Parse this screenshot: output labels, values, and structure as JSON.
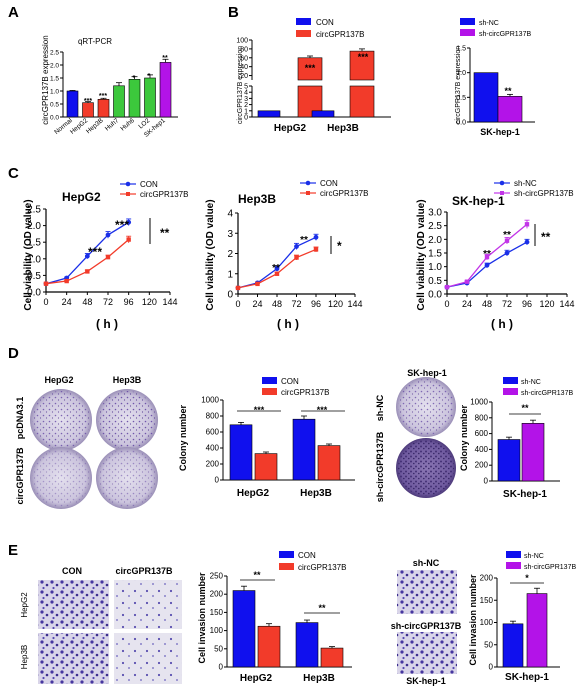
{
  "figure": {
    "panel_labels": [
      "A",
      "B",
      "C",
      "D",
      "E"
    ],
    "colors": {
      "CON": "#1010ee",
      "circGPR137B": "#f23b2a",
      "shNC": "#1010ee",
      "shcirc": "#b313e8",
      "normal": "#1010ee",
      "hcc_low": "#f23b2a",
      "hcc_mid": "#3cc83c",
      "skhep": "#b313e8",
      "line_con": "#1a2fe8",
      "line_circ": "#f23b2a",
      "line_sh": "#1a2fe8",
      "line_shcirc": "#c234e8"
    }
  },
  "panel_a": {
    "title": "qRT-PCR",
    "ylabel": "circGPR137B expression",
    "sig": [
      "***",
      "***",
      "*",
      "*",
      "**"
    ]
  },
  "panel_b": {
    "legend": [
      "CON",
      "circGPR137B"
    ],
    "ylabel": "circGPR137B expression",
    "sig": [
      "***",
      "***"
    ],
    "right_legend": [
      "sh-NC",
      "sh-circGPR137B"
    ],
    "right_ylabel": "circGPR137B expression",
    "right_sig": "**",
    "right_xlabel": "SK-hep-1"
  },
  "panel_c": {
    "xlabel": "( h )",
    "ylabel": "Cell viability (OD value)",
    "titles": [
      "HepG2",
      "Hep3B",
      "SK-hep-1"
    ],
    "legend1": [
      "CON",
      "circGPR137B"
    ],
    "legend2": [
      "CON",
      "circGPR137B"
    ],
    "legend3": [
      "sh-NC",
      "sh-circGPR137B"
    ],
    "sig_points": [
      "***",
      "***",
      "**",
      "**",
      "**",
      "**"
    ],
    "sig_side": [
      "**",
      "*",
      "**"
    ]
  },
  "panel_d": {
    "col_heads_left": [
      "HepG2",
      "Hep3B"
    ],
    "row_heads_left": [
      "pcDNA3.1",
      "circGPR137B"
    ],
    "legend": [
      "CON",
      "circGPR137B"
    ],
    "ylabel": "Colony number",
    "sig": [
      "***",
      "***"
    ],
    "right_title": "SK-hep-1",
    "row_heads_right": [
      "sh-NC",
      "sh-circGPR137B"
    ],
    "right_legend": [
      "sh-NC",
      "sh-circGPR137B"
    ],
    "right_ylabel": "Colony number",
    "right_sig": "**",
    "right_xlabel": "SK-hep-1"
  },
  "panel_e": {
    "col_heads": [
      "CON",
      "circGPR137B"
    ],
    "row_heads": [
      "HepG2",
      "Hep3B"
    ],
    "legend": [
      "CON",
      "circGPR137B"
    ],
    "ylabel": "Cell invasion number",
    "sig": [
      "**",
      "**"
    ],
    "right_top": "sh-NC",
    "right_mid": "sh-circGPR137B",
    "right_bottom": "SK-hep-1",
    "right_legend": [
      "sh-NC",
      "sh-circGPR137B"
    ],
    "right_ylabel": "Cell invasion number",
    "right_sig": "*",
    "right_xlabel": "SK-hep-1"
  },
  "chart_data": [
    {
      "panel": "A",
      "type": "bar",
      "title": "qRT-PCR",
      "ylabel": "circGPR137B expression",
      "categories": [
        "Normal",
        "HepG2",
        "Hep3B",
        "Huh7",
        "Huh6",
        "LO2",
        "SK-hep1"
      ],
      "values": [
        1.0,
        0.55,
        0.68,
        1.2,
        1.45,
        1.5,
        2.1
      ],
      "errors": [
        0.02,
        0.04,
        0.04,
        0.12,
        0.1,
        0.12,
        0.12
      ],
      "ylim": [
        0,
        2.5
      ],
      "yticks": [
        0.0,
        0.5,
        1.0,
        1.5,
        2.0,
        2.5
      ]
    },
    {
      "panel": "B-left",
      "type": "bar",
      "ylabel": "circGPR137B expression",
      "categories": [
        "HepG2",
        "Hep3B"
      ],
      "series": [
        {
          "name": "CON",
          "values": [
            1,
            1
          ]
        },
        {
          "name": "circGPR137B",
          "values": [
            60,
            75
          ],
          "errors": [
            4,
            5
          ]
        }
      ],
      "yticks_lower": [
        0,
        1,
        2,
        3,
        4,
        5
      ],
      "yticks_upper": [
        20,
        40,
        60,
        80,
        100
      ]
    },
    {
      "panel": "B-right",
      "type": "bar",
      "ylabel": "circGPR137B expression",
      "categories": [
        "SK-hep-1"
      ],
      "series": [
        {
          "name": "sh-NC",
          "values": [
            1.0
          ]
        },
        {
          "name": "sh-circGPR137B",
          "values": [
            0.52
          ],
          "errors": [
            0.04
          ]
        }
      ],
      "ylim": [
        0,
        1.5
      ],
      "yticks": [
        0.0,
        0.5,
        1.0,
        1.5
      ]
    },
    {
      "panel": "C-HepG2",
      "type": "line",
      "title": "HepG2",
      "xlabel": "( h )",
      "ylabel": "Cell viability (OD value)",
      "x": [
        0,
        24,
        48,
        72,
        96
      ],
      "series": [
        {
          "name": "CON",
          "values": [
            0.25,
            0.42,
            1.08,
            1.72,
            2.1
          ],
          "errors": [
            0.02,
            0.03,
            0.08,
            0.1,
            0.1
          ]
        },
        {
          "name": "circGPR137B",
          "values": [
            0.25,
            0.33,
            0.62,
            1.05,
            1.58
          ],
          "errors": [
            0.02,
            0.02,
            0.04,
            0.06,
            0.1
          ]
        }
      ],
      "xticks": [
        0,
        24,
        48,
        72,
        96,
        120,
        144
      ],
      "yticks": [
        0.0,
        0.5,
        1.0,
        1.5,
        2.0,
        2.5
      ],
      "ylim": [
        0,
        2.5
      ]
    },
    {
      "panel": "C-Hep3B",
      "type": "line",
      "title": "Hep3B",
      "xlabel": "( h )",
      "ylabel": "Cell viability (OD value)",
      "x": [
        0,
        24,
        48,
        72,
        96
      ],
      "series": [
        {
          "name": "CON",
          "values": [
            0.3,
            0.55,
            1.25,
            2.35,
            2.8
          ],
          "errors": [
            0.02,
            0.03,
            0.12,
            0.15,
            0.15
          ]
        },
        {
          "name": "circGPR137B",
          "values": [
            0.3,
            0.5,
            1.0,
            1.8,
            2.2
          ],
          "errors": [
            0.02,
            0.03,
            0.08,
            0.12,
            0.12
          ]
        }
      ],
      "xticks": [
        0,
        24,
        48,
        72,
        96,
        120,
        144
      ],
      "yticks": [
        0,
        1,
        2,
        3,
        4
      ],
      "ylim": [
        0,
        4
      ]
    },
    {
      "panel": "C-SK-hep-1",
      "type": "line",
      "title": "SK-hep-1",
      "xlabel": "( h )",
      "ylabel": "Cell viability (OD value)",
      "x": [
        0,
        24,
        48,
        72,
        96
      ],
      "series": [
        {
          "name": "sh-NC",
          "values": [
            0.25,
            0.4,
            1.05,
            1.5,
            1.9
          ],
          "errors": [
            0.02,
            0.03,
            0.08,
            0.1,
            0.1
          ]
        },
        {
          "name": "sh-circGPR137B",
          "values": [
            0.25,
            0.45,
            1.35,
            1.95,
            2.55
          ],
          "errors": [
            0.02,
            0.03,
            0.1,
            0.12,
            0.15
          ]
        }
      ],
      "xticks": [
        0,
        24,
        48,
        72,
        96,
        120,
        144
      ],
      "yticks": [
        0.0,
        0.5,
        1.0,
        1.5,
        2.0,
        2.5,
        3.0
      ],
      "ylim": [
        0,
        3
      ]
    },
    {
      "panel": "D-left",
      "type": "bar",
      "ylabel": "Colony number",
      "categories": [
        "HepG2",
        "Hep3B"
      ],
      "series": [
        {
          "name": "CON",
          "values": [
            690,
            760
          ],
          "errors": [
            30,
            40
          ]
        },
        {
          "name": "circGPR137B",
          "values": [
            330,
            430
          ],
          "errors": [
            20,
            20
          ]
        }
      ],
      "ylim": [
        0,
        1000
      ],
      "yticks": [
        0,
        200,
        400,
        600,
        800,
        1000
      ]
    },
    {
      "panel": "D-right",
      "type": "bar",
      "ylabel": "Colony number",
      "categories": [
        "SK-hep-1"
      ],
      "series": [
        {
          "name": "sh-NC",
          "values": [
            525
          ],
          "errors": [
            30
          ]
        },
        {
          "name": "sh-circGPR137B",
          "values": [
            730
          ],
          "errors": [
            40
          ]
        }
      ],
      "ylim": [
        0,
        1000
      ],
      "yticks": [
        0,
        200,
        400,
        600,
        800,
        1000
      ]
    },
    {
      "panel": "E-left",
      "type": "bar",
      "ylabel": "Cell invasion number",
      "categories": [
        "HepG2",
        "Hep3B"
      ],
      "series": [
        {
          "name": "CON",
          "values": [
            210,
            122
          ],
          "errors": [
            12,
            7
          ]
        },
        {
          "name": "circGPR137B",
          "values": [
            112,
            52
          ],
          "errors": [
            7,
            4
          ]
        }
      ],
      "ylim": [
        0,
        250
      ],
      "yticks": [
        0,
        50,
        100,
        150,
        200,
        250
      ]
    },
    {
      "panel": "E-right",
      "type": "bar",
      "ylabel": "Cell invasion number",
      "categories": [
        "SK-hep-1"
      ],
      "series": [
        {
          "name": "sh-NC",
          "values": [
            97
          ],
          "errors": [
            6
          ]
        },
        {
          "name": "sh-circGPR137B",
          "values": [
            165
          ],
          "errors": [
            12
          ]
        }
      ],
      "ylim": [
        0,
        200
      ],
      "yticks": [
        0,
        50,
        100,
        150,
        200
      ]
    }
  ]
}
